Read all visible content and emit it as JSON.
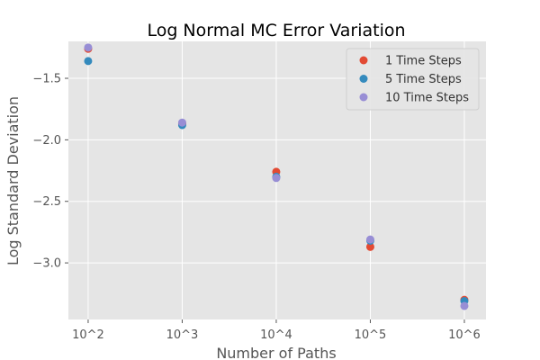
{
  "chart_data": {
    "type": "scatter",
    "title": "Log Normal MC Error Variation",
    "xlabel": "Number of Paths",
    "ylabel": "Log Standard Deviation",
    "x": [
      2,
      3,
      4,
      5,
      6
    ],
    "x_tick_labels": [
      "10^2",
      "10^3",
      "10^4",
      "10^5",
      "10^6"
    ],
    "y_ticks": [
      -1.5,
      -2.0,
      -2.5,
      -3.0
    ],
    "y_tick_labels": [
      "−1.5",
      "−2.0",
      "−2.5",
      "−3.0"
    ],
    "xlim": [
      1.79,
      6.23
    ],
    "ylim": [
      -3.46,
      -1.2
    ],
    "grid": true,
    "legend_position": "top-right",
    "series": [
      {
        "name": "1 Time Steps",
        "color": "#E24A33",
        "values": [
          -1.26,
          -1.87,
          -2.26,
          -2.87,
          -3.3
        ]
      },
      {
        "name": "5 Time Steps",
        "color": "#348ABD",
        "values": [
          -1.36,
          -1.88,
          -2.3,
          -2.82,
          -3.31
        ]
      },
      {
        "name": "10 Time Steps",
        "color": "#988ED5",
        "values": [
          -1.25,
          -1.86,
          -2.31,
          -2.81,
          -3.35
        ]
      }
    ]
  }
}
